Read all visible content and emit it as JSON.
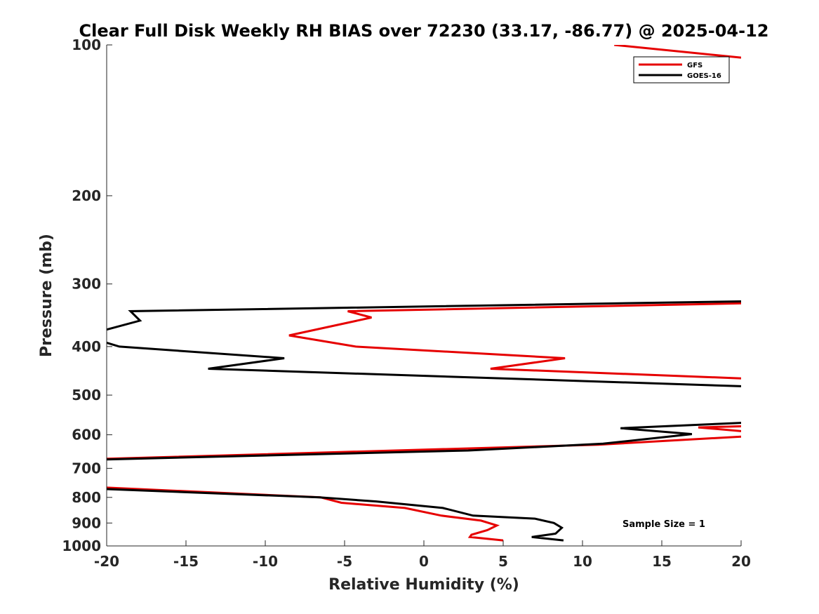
{
  "chart_data": {
    "type": "line",
    "title": "Clear Full Disk Weekly RH BIAS over 72230 (33.17, -86.77) @ 2025-04-12",
    "xlabel": "Relative Humidity (%)",
    "ylabel": "Pressure (mb)",
    "xlim": [
      -20,
      20
    ],
    "ylim": [
      100,
      1000
    ],
    "yscale": "log",
    "yreversed": true,
    "x_ticks": [
      -20,
      -15,
      -10,
      -5,
      0,
      5,
      10,
      15,
      20
    ],
    "x_tick_labels": [
      "-20",
      "-15",
      "-10",
      "-5",
      "0",
      "5",
      "10",
      "15",
      "20"
    ],
    "y_ticks": [
      100,
      200,
      300,
      400,
      500,
      600,
      700,
      800,
      900,
      1000
    ],
    "y_tick_labels": [
      "100",
      "200",
      "300",
      "400",
      "500",
      "600",
      "700",
      "800",
      "900",
      "1000"
    ],
    "legend_position": "top-right",
    "annotation": "Sample Size = 1",
    "series": [
      {
        "name": "GFS",
        "color": "#e60000",
        "points": [
          [
            5.0,
            975
          ],
          [
            2.9,
            960
          ],
          [
            3.0,
            950
          ],
          [
            4.0,
            930
          ],
          [
            4.6,
            910
          ],
          [
            3.6,
            890
          ],
          [
            1.1,
            870
          ],
          [
            -1.2,
            840
          ],
          [
            -5.2,
            820
          ],
          [
            -6.5,
            800
          ],
          [
            -20.0,
            765
          ],
          [
            null,
            null
          ],
          [
            20.0,
            605
          ],
          [
            11.0,
            628
          ],
          [
            -20.0,
            670
          ],
          [
            null,
            null
          ],
          [
            20.0,
            577
          ],
          [
            17.3,
            580
          ],
          [
            20.0,
            590
          ],
          [
            null,
            null
          ],
          [
            20.0,
            463
          ],
          [
            4.2,
            443
          ],
          [
            8.9,
            422
          ],
          [
            -4.3,
            400
          ],
          [
            -8.5,
            380
          ],
          [
            -3.3,
            350
          ],
          [
            -4.8,
            340
          ],
          [
            20.0,
            328
          ],
          [
            null,
            null
          ],
          [
            12.0,
            100
          ],
          [
            20.0,
            106
          ]
        ]
      },
      {
        "name": "GOES-16",
        "color": "#000000",
        "points": [
          [
            8.8,
            975
          ],
          [
            6.8,
            960
          ],
          [
            8.3,
            945
          ],
          [
            8.7,
            920
          ],
          [
            8.2,
            900
          ],
          [
            7.0,
            882
          ],
          [
            3.1,
            870
          ],
          [
            1.2,
            840
          ],
          [
            -3.0,
            815
          ],
          [
            -6.6,
            800
          ],
          [
            -20.0,
            770
          ],
          [
            null,
            null
          ],
          [
            20.0,
            568
          ],
          [
            12.4,
            582
          ],
          [
            16.9,
            598
          ],
          [
            11.3,
            625
          ],
          [
            2.8,
            645
          ],
          [
            -20.0,
            672
          ],
          [
            null,
            null
          ],
          [
            20.0,
            480
          ],
          [
            -13.6,
            443
          ],
          [
            -8.8,
            422
          ],
          [
            -19.2,
            400
          ],
          [
            -20.0,
            393
          ],
          [
            null,
            null
          ],
          [
            -20.0,
            370
          ],
          [
            -17.9,
            355
          ],
          [
            -18.5,
            340
          ],
          [
            20.0,
            325
          ]
        ]
      }
    ]
  }
}
